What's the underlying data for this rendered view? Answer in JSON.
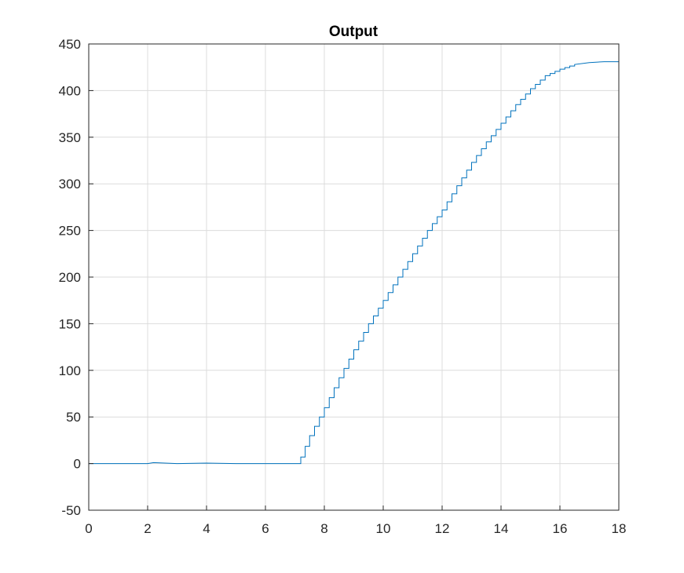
{
  "chart_data": {
    "type": "line",
    "title": "Output",
    "xlabel": "",
    "ylabel": "",
    "xlim": [
      0,
      18
    ],
    "ylim": [
      -50,
      450
    ],
    "x_ticks": [
      0,
      2,
      4,
      6,
      8,
      10,
      12,
      14,
      16,
      18
    ],
    "y_ticks": [
      -50,
      0,
      50,
      100,
      150,
      200,
      250,
      300,
      350,
      400,
      450
    ],
    "grid": true,
    "legend": "none",
    "series": [
      {
        "name": "Output",
        "color": "#0072BD",
        "step": true,
        "points": [
          [
            0,
            0
          ],
          [
            1,
            0
          ],
          [
            2,
            0
          ],
          [
            2.2,
            1
          ],
          [
            3,
            0
          ],
          [
            4,
            0.5
          ],
          [
            5,
            0
          ],
          [
            6,
            0
          ],
          [
            7.1,
            0
          ],
          [
            7.2,
            7
          ],
          [
            7.5,
            30
          ],
          [
            8,
            60
          ],
          [
            8.5,
            92
          ],
          [
            9,
            122
          ],
          [
            9.5,
            150
          ],
          [
            10,
            175
          ],
          [
            10.5,
            200
          ],
          [
            11,
            225
          ],
          [
            11.5,
            250
          ],
          [
            12,
            272
          ],
          [
            12.5,
            298
          ],
          [
            13,
            323
          ],
          [
            13.5,
            345
          ],
          [
            14,
            365
          ],
          [
            14.5,
            385
          ],
          [
            15,
            402
          ],
          [
            15.5,
            416
          ],
          [
            16,
            423
          ],
          [
            16.5,
            428
          ],
          [
            17,
            430
          ],
          [
            17.5,
            431
          ],
          [
            17.8,
            431
          ],
          [
            18,
            430
          ]
        ]
      }
    ]
  }
}
